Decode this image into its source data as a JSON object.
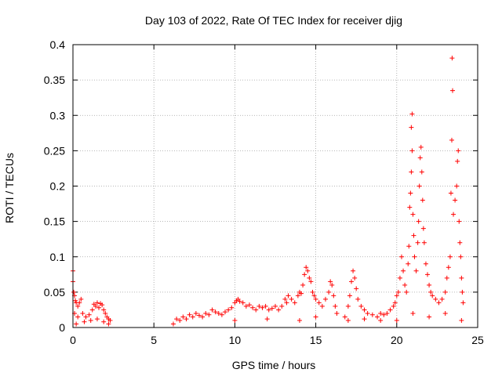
{
  "chart_data": {
    "type": "scatter",
    "title": "Day 103 of 2022, Rate Of TEC Index for receiver djig",
    "xlabel": "GPS time / hours",
    "ylabel": "ROTI / TECUs",
    "xlim": [
      0,
      25
    ],
    "ylim": [
      0,
      0.4
    ],
    "x_ticks": [
      0,
      5,
      10,
      15,
      20,
      25
    ],
    "x_tick_labels": [
      "0",
      "5",
      "10",
      "15",
      "20",
      "25"
    ],
    "y_ticks": [
      0,
      0.05,
      0.1,
      0.15,
      0.2,
      0.25,
      0.3,
      0.35,
      0.4
    ],
    "y_tick_labels": [
      "0",
      "0.05",
      "0.1",
      "0.15",
      "0.2",
      "0.25",
      "0.3",
      "0.35",
      "0.4"
    ],
    "grid": true,
    "marker": "+",
    "series_color": "#ff0000",
    "series": [
      {
        "name": "ROTI",
        "points": [
          [
            0.0,
            0.08
          ],
          [
            0.0,
            0.065
          ],
          [
            0.05,
            0.05
          ],
          [
            0.1,
            0.045
          ],
          [
            0.15,
            0.038
          ],
          [
            0.2,
            0.035
          ],
          [
            0.3,
            0.03
          ],
          [
            0.4,
            0.035
          ],
          [
            0.5,
            0.04
          ],
          [
            0.1,
            0.02
          ],
          [
            0.3,
            0.015
          ],
          [
            0.6,
            0.02
          ],
          [
            0.8,
            0.015
          ],
          [
            1.0,
            0.018
          ],
          [
            1.2,
            0.025
          ],
          [
            1.3,
            0.033
          ],
          [
            1.4,
            0.03
          ],
          [
            1.5,
            0.035
          ],
          [
            1.6,
            0.028
          ],
          [
            1.7,
            0.034
          ],
          [
            1.8,
            0.032
          ],
          [
            1.9,
            0.025
          ],
          [
            2.0,
            0.02
          ],
          [
            2.1,
            0.015
          ],
          [
            2.2,
            0.012
          ],
          [
            2.3,
            0.01
          ],
          [
            0.2,
            0.005
          ],
          [
            0.7,
            0.008
          ],
          [
            1.1,
            0.01
          ],
          [
            1.5,
            0.012
          ],
          [
            1.9,
            0.008
          ],
          [
            2.2,
            0.005
          ],
          [
            6.2,
            0.005
          ],
          [
            6.4,
            0.012
          ],
          [
            6.6,
            0.01
          ],
          [
            6.8,
            0.015
          ],
          [
            7.0,
            0.012
          ],
          [
            7.2,
            0.018
          ],
          [
            7.4,
            0.015
          ],
          [
            7.6,
            0.02
          ],
          [
            7.8,
            0.017
          ],
          [
            8.0,
            0.015
          ],
          [
            8.2,
            0.02
          ],
          [
            8.4,
            0.018
          ],
          [
            8.6,
            0.025
          ],
          [
            8.8,
            0.022
          ],
          [
            9.0,
            0.02
          ],
          [
            9.2,
            0.018
          ],
          [
            9.4,
            0.022
          ],
          [
            9.6,
            0.025
          ],
          [
            9.8,
            0.028
          ],
          [
            10.0,
            0.035
          ],
          [
            10.1,
            0.038
          ],
          [
            10.2,
            0.04
          ],
          [
            10.3,
            0.037
          ],
          [
            10.5,
            0.035
          ],
          [
            10.7,
            0.03
          ],
          [
            10.9,
            0.032
          ],
          [
            11.1,
            0.028
          ],
          [
            11.3,
            0.025
          ],
          [
            11.5,
            0.03
          ],
          [
            11.7,
            0.028
          ],
          [
            11.9,
            0.03
          ],
          [
            12.1,
            0.025
          ],
          [
            12.3,
            0.027
          ],
          [
            12.5,
            0.03
          ],
          [
            12.7,
            0.025
          ],
          [
            12.9,
            0.03
          ],
          [
            13.1,
            0.04
          ],
          [
            13.2,
            0.035
          ],
          [
            13.3,
            0.045
          ],
          [
            13.5,
            0.04
          ],
          [
            13.7,
            0.035
          ],
          [
            13.9,
            0.045
          ],
          [
            14.0,
            0.05
          ],
          [
            14.1,
            0.048
          ],
          [
            14.2,
            0.06
          ],
          [
            14.3,
            0.075
          ],
          [
            14.4,
            0.085
          ],
          [
            14.5,
            0.08
          ],
          [
            14.6,
            0.07
          ],
          [
            14.7,
            0.065
          ],
          [
            14.8,
            0.05
          ],
          [
            14.9,
            0.045
          ],
          [
            15.0,
            0.04
          ],
          [
            15.2,
            0.035
          ],
          [
            15.4,
            0.03
          ],
          [
            15.6,
            0.04
          ],
          [
            15.8,
            0.05
          ],
          [
            15.9,
            0.065
          ],
          [
            16.0,
            0.06
          ],
          [
            16.1,
            0.045
          ],
          [
            16.2,
            0.03
          ],
          [
            16.3,
            0.02
          ],
          [
            16.8,
            0.015
          ],
          [
            17.0,
            0.03
          ],
          [
            17.1,
            0.045
          ],
          [
            17.2,
            0.065
          ],
          [
            17.3,
            0.08
          ],
          [
            17.4,
            0.07
          ],
          [
            17.5,
            0.055
          ],
          [
            17.6,
            0.04
          ],
          [
            17.8,
            0.03
          ],
          [
            18.0,
            0.025
          ],
          [
            18.2,
            0.02
          ],
          [
            18.5,
            0.018
          ],
          [
            18.8,
            0.015
          ],
          [
            19.0,
            0.02
          ],
          [
            19.2,
            0.018
          ],
          [
            19.4,
            0.02
          ],
          [
            19.6,
            0.025
          ],
          [
            19.8,
            0.03
          ],
          [
            19.9,
            0.035
          ],
          [
            20.0,
            0.045
          ],
          [
            20.1,
            0.05
          ],
          [
            20.2,
            0.07
          ],
          [
            20.3,
            0.1
          ],
          [
            20.4,
            0.08
          ],
          [
            20.5,
            0.06
          ],
          [
            20.6,
            0.05
          ],
          [
            20.7,
            0.09
          ],
          [
            20.75,
            0.115
          ],
          [
            20.8,
            0.17
          ],
          [
            20.85,
            0.19
          ],
          [
            20.9,
            0.22
          ],
          [
            20.95,
            0.25
          ],
          [
            20.9,
            0.283
          ],
          [
            20.95,
            0.302
          ],
          [
            21.0,
            0.16
          ],
          [
            21.05,
            0.13
          ],
          [
            21.1,
            0.1
          ],
          [
            21.2,
            0.08
          ],
          [
            21.3,
            0.12
          ],
          [
            21.35,
            0.15
          ],
          [
            21.4,
            0.2
          ],
          [
            21.45,
            0.24
          ],
          [
            21.5,
            0.255
          ],
          [
            21.55,
            0.22
          ],
          [
            21.6,
            0.18
          ],
          [
            21.65,
            0.14
          ],
          [
            21.7,
            0.12
          ],
          [
            21.8,
            0.09
          ],
          [
            21.9,
            0.075
          ],
          [
            22.0,
            0.06
          ],
          [
            22.1,
            0.05
          ],
          [
            22.2,
            0.045
          ],
          [
            22.4,
            0.04
          ],
          [
            22.6,
            0.035
          ],
          [
            22.8,
            0.04
          ],
          [
            23.0,
            0.05
          ],
          [
            23.1,
            0.07
          ],
          [
            23.2,
            0.085
          ],
          [
            23.3,
            0.1
          ],
          [
            23.35,
            0.19
          ],
          [
            23.4,
            0.265
          ],
          [
            23.45,
            0.335
          ],
          [
            23.42,
            0.381
          ],
          [
            23.5,
            0.16
          ],
          [
            23.6,
            0.18
          ],
          [
            23.7,
            0.2
          ],
          [
            23.75,
            0.235
          ],
          [
            23.8,
            0.25
          ],
          [
            23.85,
            0.15
          ],
          [
            23.9,
            0.12
          ],
          [
            23.95,
            0.1
          ],
          [
            24.0,
            0.07
          ],
          [
            24.05,
            0.05
          ],
          [
            24.1,
            0.035
          ],
          [
            20.0,
            0.01
          ],
          [
            21.0,
            0.02
          ],
          [
            22.0,
            0.015
          ],
          [
            23.0,
            0.02
          ],
          [
            24.0,
            0.01
          ],
          [
            17.0,
            0.01
          ],
          [
            18.0,
            0.012
          ],
          [
            19.0,
            0.01
          ],
          [
            10.0,
            0.01
          ],
          [
            12.0,
            0.012
          ],
          [
            14.0,
            0.01
          ],
          [
            15.0,
            0.015
          ]
        ]
      }
    ]
  }
}
